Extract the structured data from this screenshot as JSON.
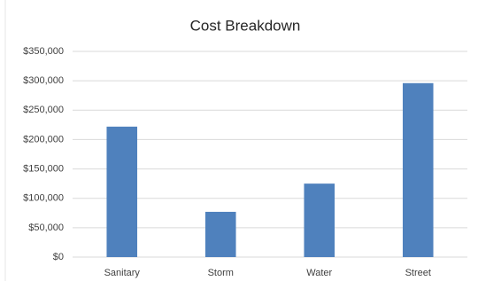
{
  "chart_data": {
    "type": "bar",
    "title": "Cost Breakdown",
    "categories": [
      "Sanitary",
      "Storm",
      "Water",
      "Street"
    ],
    "values": [
      222000,
      77000,
      125000,
      296000
    ],
    "color": "#4f81bd",
    "ylim": [
      0,
      350000
    ],
    "yticks": [
      {
        "value": 0,
        "label": "$0"
      },
      {
        "value": 50000,
        "label": "$50,000"
      },
      {
        "value": 100000,
        "label": "$100,000"
      },
      {
        "value": 150000,
        "label": "$150,000"
      },
      {
        "value": 200000,
        "label": "$200,000"
      },
      {
        "value": 250000,
        "label": "$250,000"
      },
      {
        "value": 300000,
        "label": "$300,000"
      },
      {
        "value": 350000,
        "label": "$350,000"
      }
    ],
    "grid": true
  }
}
